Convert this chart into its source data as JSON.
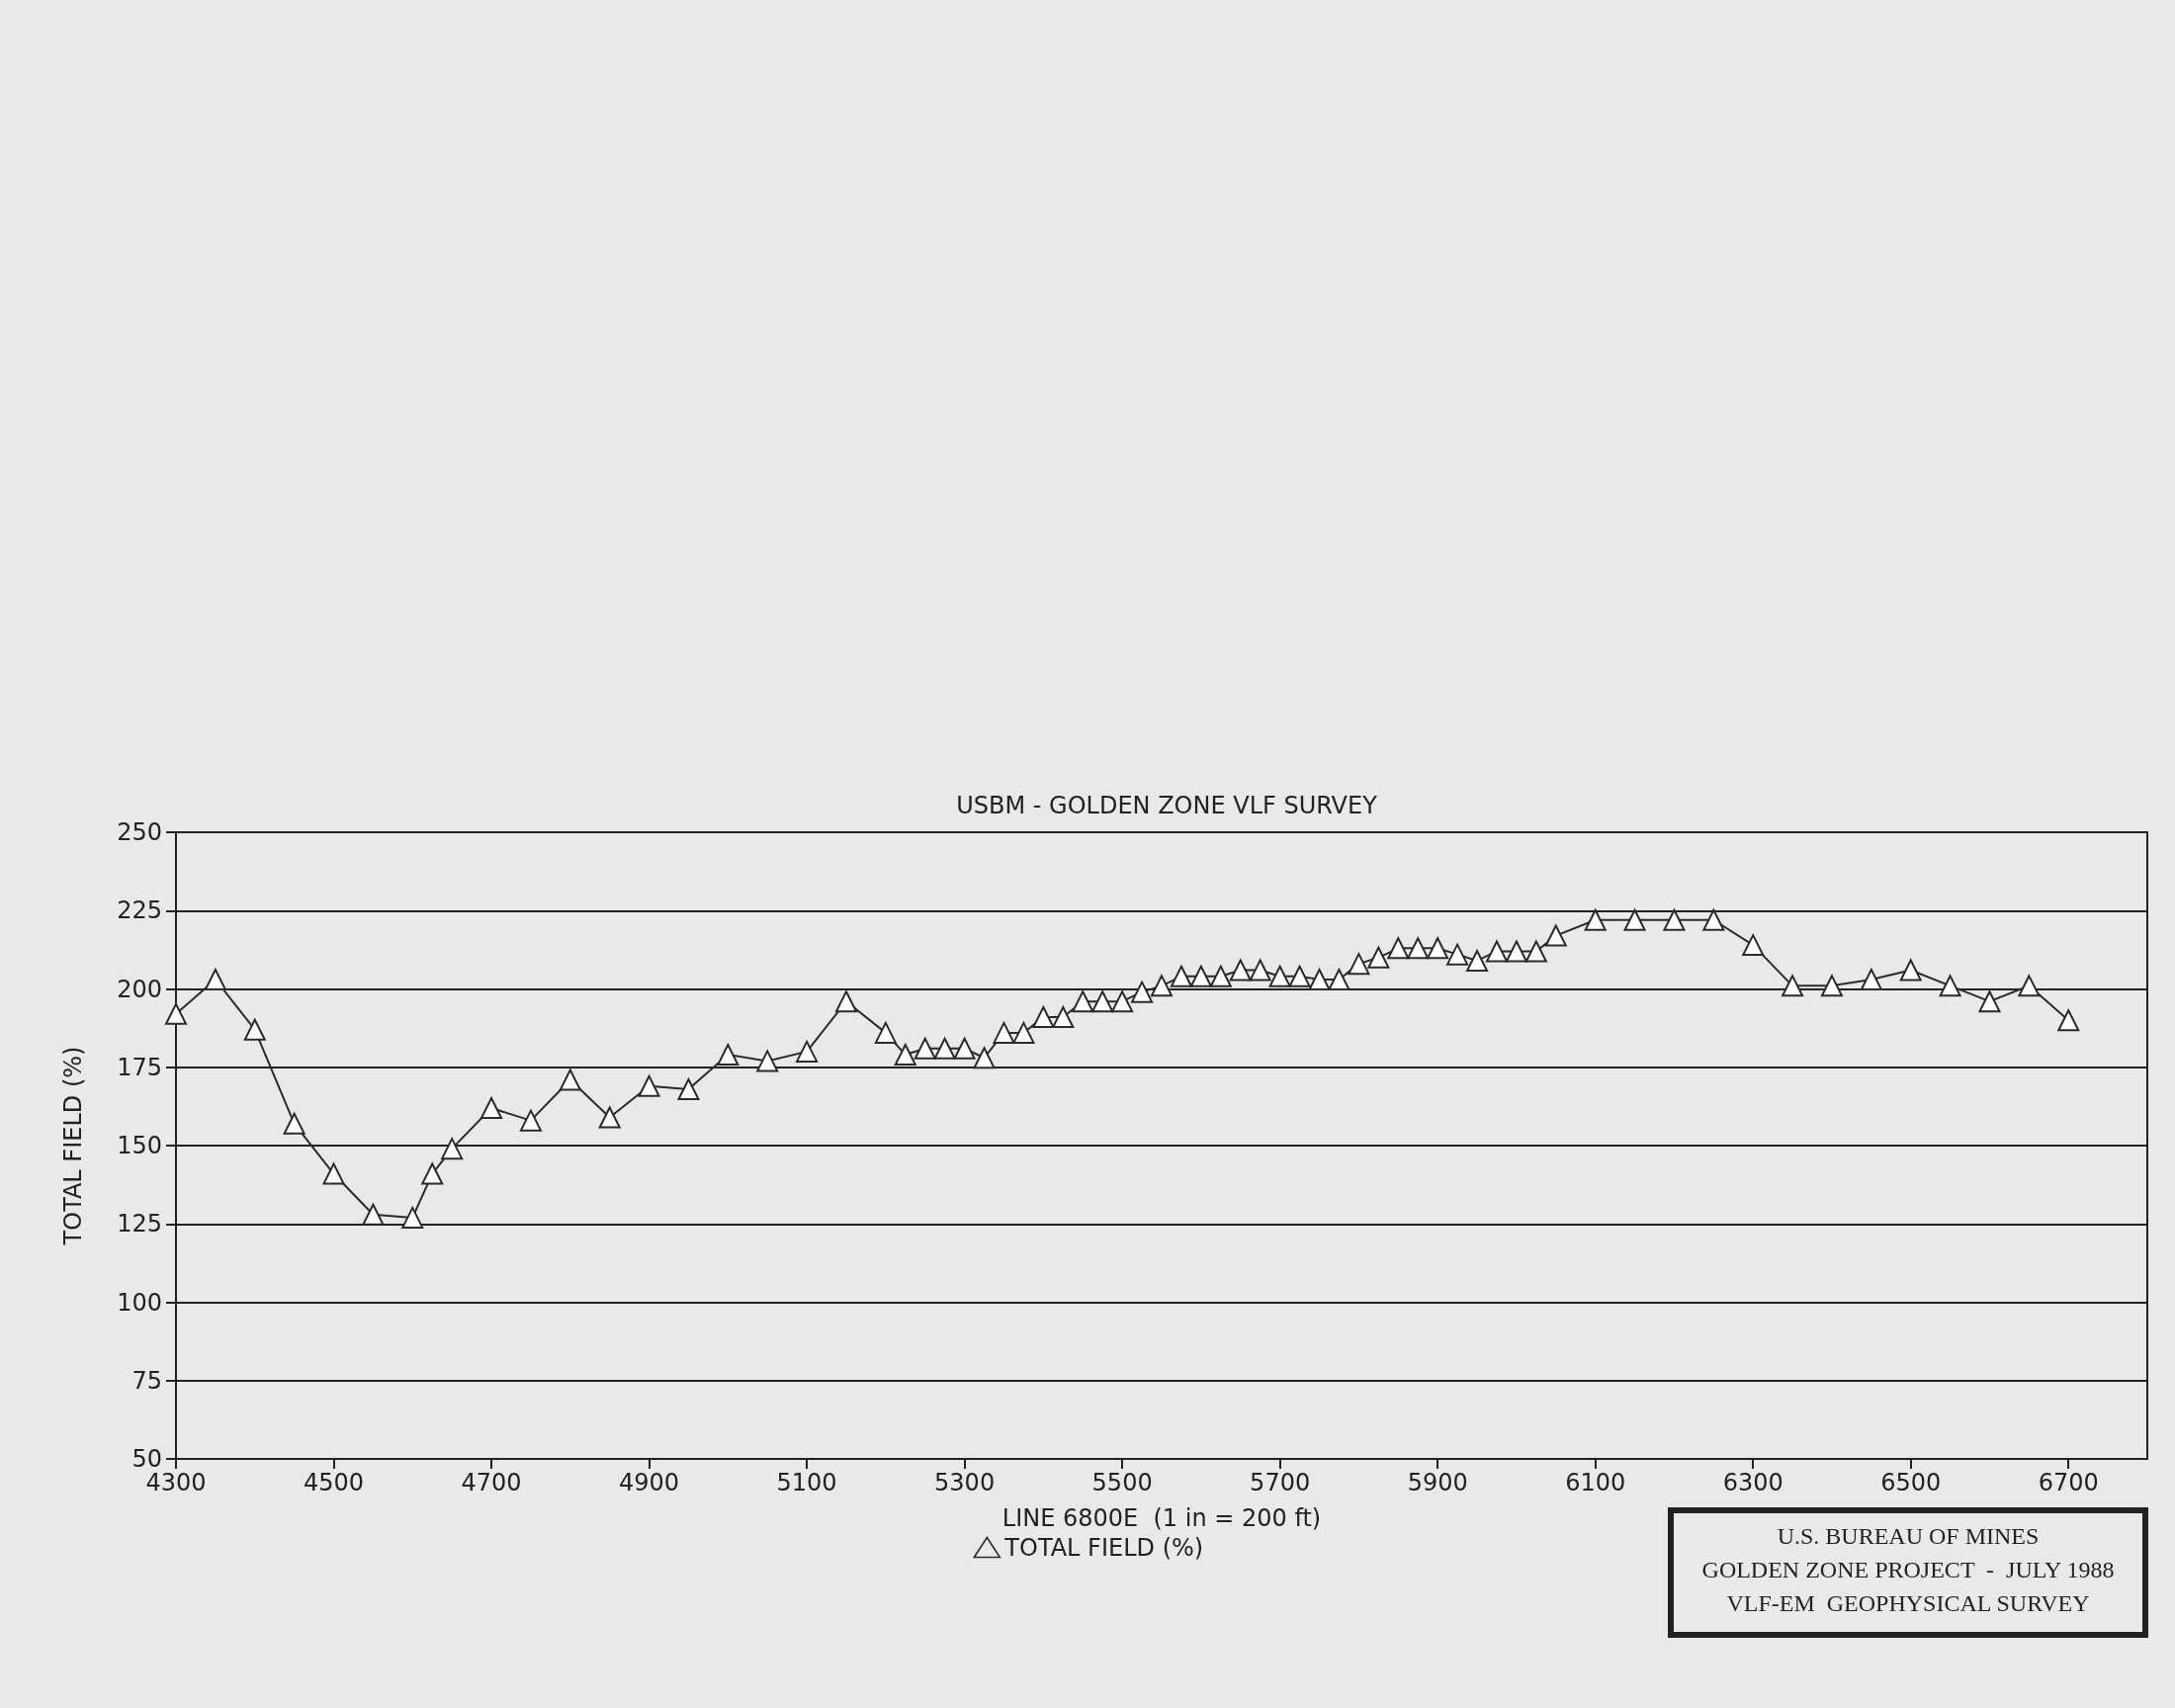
{
  "chart_data": {
    "type": "line",
    "title": "USBM - GOLDEN ZONE VLF SURVEY",
    "xlabel": "LINE 6800E  (1 in = 200 ft)",
    "ylabel": "TOTAL FIELD (%)",
    "annotations": [
      "U.S. BUREAU OF MINES",
      "GOLDEN ZONE PROJECT  -  JULY 1988",
      "VLF-EM  GEOPHYSICAL SURVEY"
    ],
    "x": [
      4300,
      4350,
      4400,
      4450,
      4500,
      4550,
      4600,
      4625,
      4650,
      4700,
      4750,
      4800,
      4850,
      4900,
      4950,
      5000,
      5050,
      5100,
      5150,
      5200,
      5225,
      5250,
      5275,
      5300,
      5325,
      5350,
      5375,
      5400,
      5425,
      5450,
      5475,
      5500,
      5525,
      5550,
      5575,
      5600,
      5625,
      5650,
      5675,
      5700,
      5725,
      5750,
      5775,
      5800,
      5825,
      5850,
      5875,
      5900,
      5925,
      5950,
      5975,
      6000,
      6025,
      6050,
      6100,
      6150,
      6200,
      6250,
      6300,
      6350,
      6400,
      6450,
      6500,
      6550,
      6600,
      6650,
      6700
    ],
    "series": [
      {
        "name": "TOTAL FIELD (%)",
        "color": "#2b2b2b",
        "values": [
          192,
          203,
          187,
          157,
          141,
          128,
          127,
          141,
          149,
          162,
          158,
          171,
          159,
          169,
          168,
          179,
          177,
          180,
          196,
          186,
          179,
          181,
          181,
          181,
          178,
          186,
          186,
          191,
          191,
          196,
          196,
          196,
          199,
          201,
          204,
          204,
          204,
          206,
          206,
          204,
          204,
          203,
          203,
          208,
          210,
          213,
          213,
          213,
          211,
          209,
          212,
          212,
          212,
          217,
          222,
          222,
          222,
          222,
          214,
          201,
          201,
          203,
          206,
          201,
          196,
          201,
          190
        ]
      }
    ],
    "xlim": [
      4300,
      6800
    ],
    "xticks": [
      4300,
      4500,
      4700,
      4900,
      5100,
      5300,
      5500,
      5700,
      5900,
      6100,
      6300,
      6500,
      6700
    ],
    "ylim": [
      50,
      250
    ],
    "yticks": [
      50,
      75,
      100,
      125,
      150,
      175,
      200,
      225,
      250
    ],
    "grid": "y",
    "legend": "bottom",
    "marker": "triangle",
    "line_style": "solid"
  }
}
